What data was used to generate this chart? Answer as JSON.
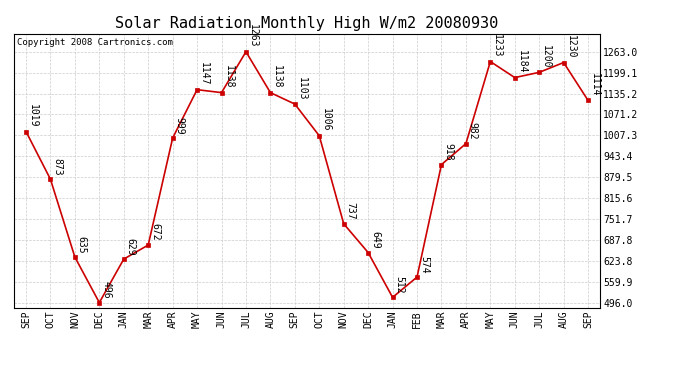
{
  "title": "Solar Radiation Monthly High W/m2 20080930",
  "copyright": "Copyright 2008 Cartronics.com",
  "categories": [
    "SEP",
    "OCT",
    "NOV",
    "DEC",
    "JAN",
    "MAR",
    "APR",
    "MAY",
    "JUN",
    "JUL",
    "AUG",
    "SEP",
    "OCT",
    "NOV",
    "DEC",
    "JAN",
    "FEB",
    "MAR",
    "APR",
    "MAY",
    "JUN",
    "JUL",
    "AUG",
    "SEP"
  ],
  "values": [
    1019,
    873,
    635,
    496,
    629,
    672,
    999,
    1147,
    1138,
    1263,
    1138,
    1103,
    1006,
    737,
    649,
    512,
    574,
    918,
    982,
    1233,
    1184,
    1200,
    1230,
    1114
  ],
  "line_color": "#cc0000",
  "marker_color": "#cc0000",
  "background_color": "#ffffff",
  "grid_color": "#cccccc",
  "ymin": 496.0,
  "ymax": 1263.0,
  "yticks": [
    496.0,
    559.9,
    623.8,
    687.8,
    751.7,
    815.6,
    879.5,
    943.4,
    1007.3,
    1071.2,
    1135.2,
    1199.1,
    1263.0
  ],
  "title_fontsize": 11,
  "label_fontsize": 7,
  "annot_fontsize": 7,
  "copyright_fontsize": 6.5
}
